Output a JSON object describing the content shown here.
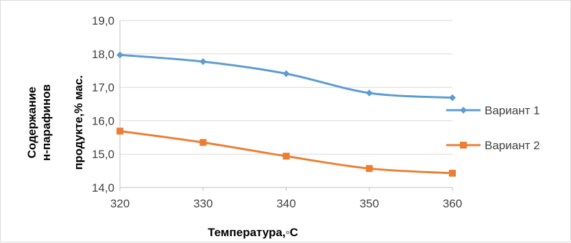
{
  "chart_data": {
    "type": "line",
    "x": [
      320,
      330,
      340,
      350,
      360
    ],
    "x_tick_labels": [
      "320",
      "330",
      "340",
      "350",
      "360"
    ],
    "xlim": [
      320,
      360
    ],
    "ylim": [
      14.0,
      19.0
    ],
    "y_ticks": [
      14.0,
      15.0,
      16.0,
      17.0,
      18.0,
      19.0
    ],
    "y_tick_labels": [
      "14,0",
      "15,0",
      "16,0",
      "17,0",
      "18,0",
      "19,0"
    ],
    "xlabel": "Температура,◦С",
    "ylabel_lines": [
      "Содержание",
      "н-парафинов",
      "продукте,% мас."
    ],
    "grid": "horizontal",
    "legend_position": "right",
    "series": [
      {
        "name": "Вариант 1",
        "color": "#5b9bd5",
        "marker": "diamond",
        "values": [
          17.97,
          17.77,
          17.41,
          16.83,
          16.69
        ]
      },
      {
        "name": "Вариант 2",
        "color": "#ed7d31",
        "marker": "square",
        "values": [
          15.69,
          15.35,
          14.94,
          14.57,
          14.43
        ]
      }
    ]
  }
}
